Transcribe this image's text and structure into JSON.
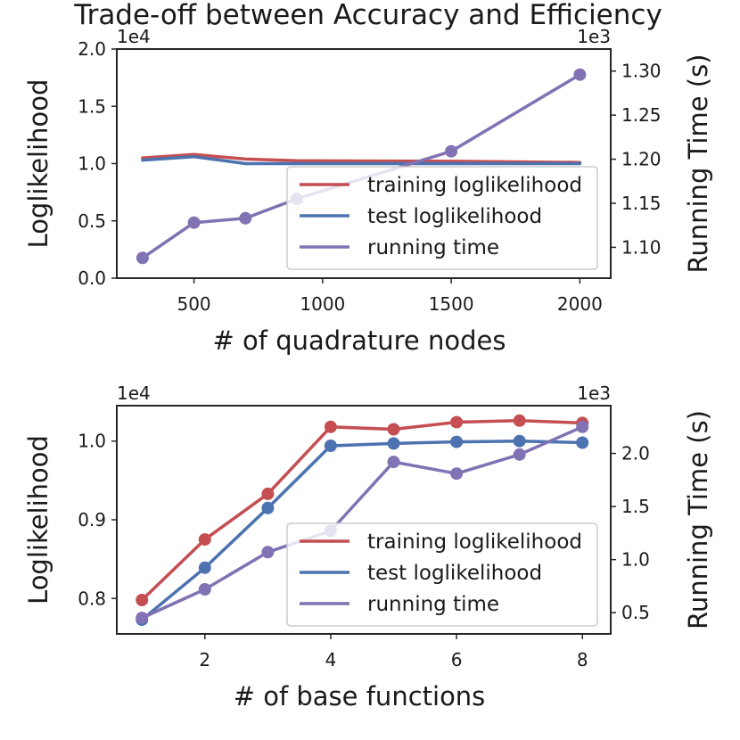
{
  "title": "Trade-off between Accuracy and Efficiency",
  "colors": {
    "training": "#c44e52",
    "test": "#4c72b0",
    "running": "#8172b3",
    "axis": "#262626",
    "legend_border": "#cccccc"
  },
  "chart_data": [
    {
      "type": "line",
      "xlabel": "# of quadrature nodes",
      "ylabel": "Loglikelihood",
      "ylabel_right": "Running Time (s)",
      "left_multiplier": "1e4",
      "right_multiplier": "1e3",
      "xlim": [
        200,
        2120
      ],
      "ylim_left": [
        0.0,
        2.0
      ],
      "ylim_right": [
        1.065,
        1.325
      ],
      "x_ticks": [
        500,
        1000,
        1500,
        2000
      ],
      "y_ticks_left": [
        0.0,
        0.5,
        1.0,
        1.5,
        2.0
      ],
      "y_ticks_left_labels": [
        "0.0",
        "0.5",
        "1.0",
        "1.5",
        "2.0"
      ],
      "y_ticks_right": [
        1.1,
        1.15,
        1.2,
        1.25,
        1.3
      ],
      "y_ticks_right_labels": [
        "1.10",
        "1.15",
        "1.20",
        "1.25",
        "1.30"
      ],
      "x": [
        300,
        500,
        700,
        900,
        1500,
        2000
      ],
      "series": [
        {
          "name": "training loglikelihood",
          "color_key": "training",
          "axis": "left",
          "markers": false,
          "values": [
            1.05,
            1.08,
            1.04,
            1.025,
            1.02,
            1.01
          ]
        },
        {
          "name": "test loglikelihood",
          "color_key": "test",
          "axis": "left",
          "markers": false,
          "values": [
            1.03,
            1.06,
            1.0,
            1.0,
            1.0,
            1.0
          ]
        },
        {
          "name": "running time",
          "color_key": "running",
          "axis": "right",
          "markers": true,
          "values": [
            1.088,
            1.128,
            1.133,
            1.155,
            1.209,
            1.296
          ]
        }
      ],
      "legend": [
        "training loglikelihood",
        "test loglikelihood",
        "running time"
      ],
      "legend_location": "lower-right"
    },
    {
      "type": "line",
      "xlabel": "# of base functions",
      "ylabel": "Loglikelihood",
      "ylabel_right": "Running Time (s)",
      "left_multiplier": "1e4",
      "right_multiplier": "1e3",
      "xlim": [
        0.6,
        8.45
      ],
      "ylim_left": [
        0.755,
        1.045
      ],
      "ylim_right": [
        0.3,
        2.45
      ],
      "x_ticks": [
        2,
        4,
        6,
        8
      ],
      "y_ticks_left": [
        0.8,
        0.9,
        1.0
      ],
      "y_ticks_left_labels": [
        "0.8",
        "0.9",
        "1.0"
      ],
      "y_ticks_right": [
        0.5,
        1.0,
        1.5,
        2.0
      ],
      "y_ticks_right_labels": [
        "0.5",
        "1.0",
        "1.5",
        "2.0"
      ],
      "x": [
        1,
        2,
        3,
        4,
        5,
        6,
        7,
        8
      ],
      "series": [
        {
          "name": "training loglikelihood",
          "color_key": "training",
          "axis": "left",
          "markers": true,
          "values": [
            0.798,
            0.875,
            0.933,
            1.018,
            1.015,
            1.024,
            1.026,
            1.023
          ]
        },
        {
          "name": "test loglikelihood",
          "color_key": "test",
          "axis": "left",
          "markers": true,
          "values": [
            0.773,
            0.839,
            0.915,
            0.994,
            0.997,
            0.999,
            1.0,
            0.998
          ]
        },
        {
          "name": "running time",
          "color_key": "running",
          "axis": "right",
          "markers": true,
          "values": [
            0.45,
            0.72,
            1.07,
            1.27,
            1.92,
            1.81,
            1.99,
            2.25
          ]
        }
      ],
      "legend": [
        "training loglikelihood",
        "test loglikelihood",
        "running time"
      ],
      "legend_location": "lower-right"
    }
  ]
}
